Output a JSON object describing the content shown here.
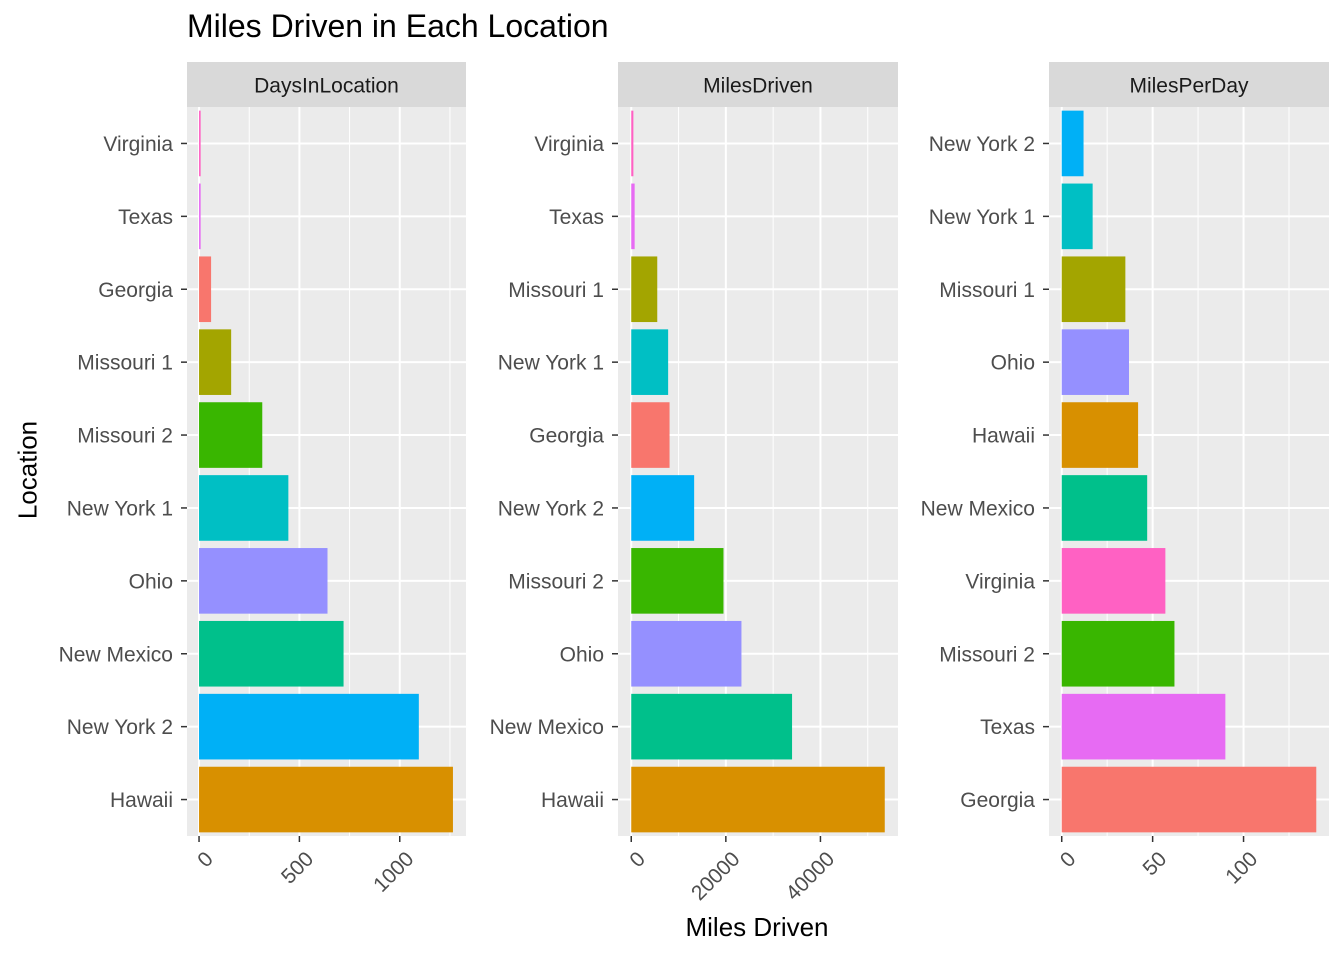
{
  "chart_data": {
    "type": "bar",
    "title": "Miles Driven in Each Location",
    "xlabel": "Miles Driven",
    "ylabel": "Location",
    "orientation": "horizontal",
    "grid": true,
    "legend": "none",
    "facets": [
      {
        "strip": "DaysInLocation",
        "xlim": [
          -60,
          1330
        ],
        "ticks": [
          0,
          500,
          1000
        ],
        "tick_labels": [
          "0",
          "500",
          "1000"
        ],
        "categories": [
          "Virginia",
          "Texas",
          "Georgia",
          "Missouri 1",
          "Missouri 2",
          "New York 1",
          "Ohio",
          "New Mexico",
          "New York 2",
          "Hawaii"
        ],
        "values": [
          8,
          8,
          60,
          160,
          315,
          445,
          640,
          720,
          1095,
          1265
        ],
        "colors": [
          "#FF61C3",
          "#E76BF3",
          "#F8766D",
          "#A3A500",
          "#39B600",
          "#00BFC4",
          "#9590FF",
          "#00C08B",
          "#00B0F6",
          "#D89000"
        ]
      },
      {
        "strip": "MilesDriven",
        "xlim": [
          -2800,
          56400
        ],
        "ticks": [
          0,
          20000,
          40000
        ],
        "tick_labels": [
          "0",
          "20000",
          "40000"
        ],
        "categories": [
          "Virginia",
          "Texas",
          "Missouri 1",
          "New York 1",
          "Georgia",
          "New York 2",
          "Missouri 2",
          "Ohio",
          "New Mexico",
          "Hawaii"
        ],
        "values": [
          450,
          720,
          5500,
          7800,
          8100,
          13300,
          19500,
          23300,
          34000,
          53600
        ],
        "colors": [
          "#FF61C3",
          "#E76BF3",
          "#A3A500",
          "#00BFC4",
          "#F8766D",
          "#00B0F6",
          "#39B600",
          "#9590FF",
          "#00C08B",
          "#D89000"
        ]
      },
      {
        "strip": "MilesPerDay",
        "xlim": [
          -7,
          147
        ],
        "ticks": [
          0,
          50,
          100
        ],
        "tick_labels": [
          "0",
          "50",
          "100"
        ],
        "categories": [
          "New York 2",
          "New York 1",
          "Missouri 1",
          "Ohio",
          "Hawaii",
          "New Mexico",
          "Virginia",
          "Missouri 2",
          "Texas",
          "Georgia"
        ],
        "values": [
          12,
          17,
          35,
          37,
          42,
          47,
          57,
          62,
          90,
          140
        ],
        "colors": [
          "#00B0F6",
          "#00BFC4",
          "#A3A500",
          "#9590FF",
          "#D89000",
          "#00C08B",
          "#FF61C3",
          "#39B600",
          "#E76BF3",
          "#F8766D"
        ]
      }
    ]
  }
}
